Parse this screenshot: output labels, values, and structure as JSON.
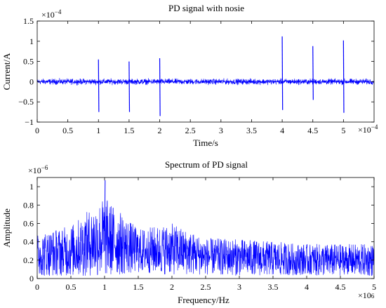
{
  "chart_data": [
    {
      "type": "line",
      "title": "PD signal with nosie",
      "xlabel": "Time/s",
      "ylabel": "Current/A",
      "xlim": [
        0,
        0.00055
      ],
      "ylim": [
        -0.0001,
        0.00015
      ],
      "x_ticks": [
        "0",
        "0.5",
        "1",
        "1.5",
        "2",
        "2.5",
        "3",
        "3.5",
        "4",
        "4.5",
        "5"
      ],
      "y_ticks": [
        "-1",
        "-0.5",
        "0",
        "0.5",
        "1",
        "1.5"
      ],
      "x_exponent": "×10",
      "x_exponent_power": "−4",
      "y_exponent": "×10",
      "y_exponent_power": "−4",
      "noise_amplitude": 1e-05,
      "pulses": [
        {
          "x": 0.0001,
          "peak": 5.5e-05,
          "trough": -7.5e-05
        },
        {
          "x": 0.00015,
          "peak": 5e-05,
          "trough": -7.5e-05
        },
        {
          "x": 0.0002,
          "peak": 5.8e-05,
          "trough": -8.5e-05
        },
        {
          "x": 0.0004,
          "peak": 0.000112,
          "trough": -7e-05
        },
        {
          "x": 0.00045,
          "peak": 8.8e-05,
          "trough": -4.5e-05
        },
        {
          "x": 0.0005,
          "peak": 0.000102,
          "trough": -7.7e-05
        }
      ],
      "grid": false,
      "color": "#0000ff"
    },
    {
      "type": "line",
      "title": "Spectrum of PD signal",
      "xlabel": "Frequency/Hz",
      "ylabel": "Amplitude",
      "xlim": [
        0,
        5000000
      ],
      "ylim": [
        0,
        1.1e-06
      ],
      "x_ticks": [
        "0",
        "0.5",
        "1",
        "1.5",
        "2",
        "2.5",
        "3",
        "3.5",
        "4",
        "4.5",
        "5"
      ],
      "y_ticks": [
        "0",
        "0.2",
        "0.4",
        "0.6",
        "0.8",
        "1"
      ],
      "x_exponent": "×10",
      "x_exponent_power": "6",
      "y_exponent": "×10",
      "y_exponent_power": "−6",
      "envelope": [
        {
          "x": 0,
          "baseline": 2.5e-07,
          "spread": 3e-07
        },
        {
          "x": 500000,
          "baseline": 3e-07,
          "spread": 3.5e-07
        },
        {
          "x": 1000000,
          "baseline": 4.5e-07,
          "spread": 5.5e-07
        },
        {
          "x": 1500000,
          "baseline": 3e-07,
          "spread": 3e-07
        },
        {
          "x": 2000000,
          "baseline": 3.2e-07,
          "spread": 3.5e-07
        },
        {
          "x": 2500000,
          "baseline": 2.4e-07,
          "spread": 2.5e-07
        },
        {
          "x": 3000000,
          "baseline": 2.3e-07,
          "spread": 2.5e-07
        },
        {
          "x": 4000000,
          "baseline": 2e-07,
          "spread": 2.2e-07
        },
        {
          "x": 5000000,
          "baseline": 2e-07,
          "spread": 2.2e-07
        }
      ],
      "peak_x": 1000000,
      "peak_value": 1.07e-06,
      "grid": false,
      "color": "#0000ff"
    }
  ]
}
